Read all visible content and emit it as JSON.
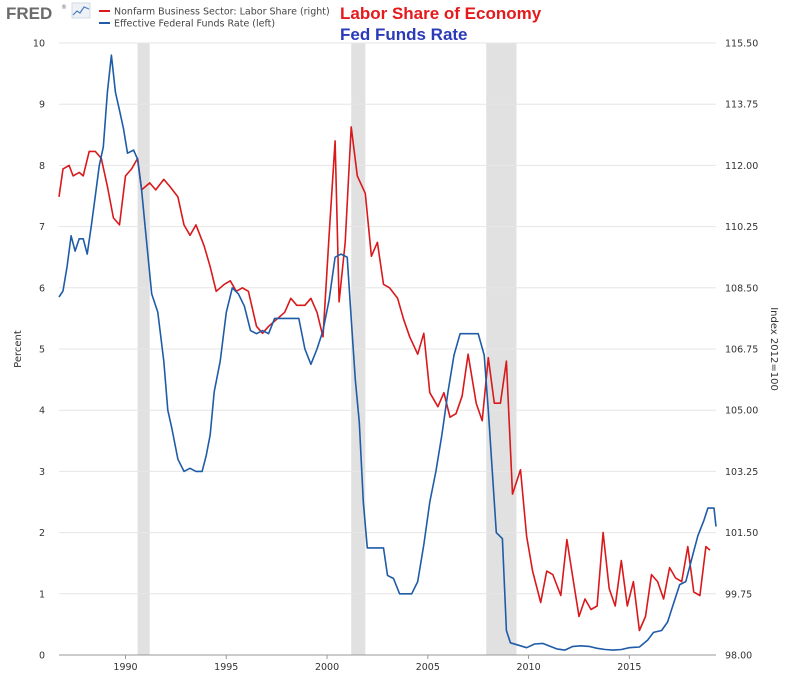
{
  "logo": {
    "text": "FRED",
    "trademark": "®"
  },
  "overlay": {
    "labor_title": "Labor Share of Economy",
    "fed_title": "Fed Funds Rate",
    "labor_color": "#e41a1c",
    "fed_color": "#2b3bb8"
  },
  "chart_data": {
    "type": "line",
    "x_range": [
      1986.7,
      2019.3
    ],
    "x_ticks": [
      {
        "value": 1990,
        "label": "1990"
      },
      {
        "value": 1995,
        "label": "1995"
      },
      {
        "value": 2000,
        "label": "2000"
      },
      {
        "value": 2005,
        "label": "2005"
      },
      {
        "value": 2010,
        "label": "2010"
      },
      {
        "value": 2015,
        "label": "2015"
      }
    ],
    "y_left": {
      "label": "Percent",
      "range": [
        0,
        10
      ],
      "ticks": [
        "0",
        "1",
        "2",
        "3",
        "4",
        "5",
        "6",
        "7",
        "8",
        "9",
        "10"
      ]
    },
    "y_right": {
      "label": "Index 2012=100",
      "range": [
        98.0,
        115.5
      ],
      "ticks": [
        "98.00",
        "99.75",
        "101.50",
        "103.25",
        "105.00",
        "106.75",
        "108.50",
        "110.25",
        "112.00",
        "113.75",
        "115.50"
      ]
    },
    "grid": true,
    "recessions": [
      [
        1990.6,
        1991.2
      ],
      [
        2001.2,
        2001.9
      ],
      [
        2007.9,
        2009.4
      ]
    ],
    "series": [
      {
        "name": "Nonfarm Business Sector: Labor Share (right)",
        "axis": "right",
        "color": "#d9191c",
        "points": [
          [
            1986.7,
            111.1
          ],
          [
            1986.9,
            111.9
          ],
          [
            1987.2,
            112.0
          ],
          [
            1987.4,
            111.7
          ],
          [
            1987.7,
            111.8
          ],
          [
            1987.9,
            111.7
          ],
          [
            1988.2,
            112.4
          ],
          [
            1988.5,
            112.4
          ],
          [
            1988.8,
            112.2
          ],
          [
            1989.1,
            111.4
          ],
          [
            1989.4,
            110.5
          ],
          [
            1989.7,
            110.3
          ],
          [
            1990.0,
            111.7
          ],
          [
            1990.3,
            111.9
          ],
          [
            1990.6,
            112.2
          ],
          [
            1990.8,
            111.3
          ],
          [
            1991.2,
            111.5
          ],
          [
            1991.5,
            111.3
          ],
          [
            1991.9,
            111.6
          ],
          [
            1992.2,
            111.4
          ],
          [
            1992.6,
            111.1
          ],
          [
            1992.9,
            110.3
          ],
          [
            1993.2,
            110.0
          ],
          [
            1993.5,
            110.3
          ],
          [
            1993.9,
            109.7
          ],
          [
            1994.2,
            109.1
          ],
          [
            1994.5,
            108.4
          ],
          [
            1994.9,
            108.6
          ],
          [
            1995.2,
            108.7
          ],
          [
            1995.5,
            108.4
          ],
          [
            1995.8,
            108.5
          ],
          [
            1996.1,
            108.4
          ],
          [
            1996.5,
            107.4
          ],
          [
            1996.8,
            107.2
          ],
          [
            1997.1,
            107.4
          ],
          [
            1997.5,
            107.6
          ],
          [
            1997.9,
            107.8
          ],
          [
            1998.2,
            108.2
          ],
          [
            1998.5,
            108.0
          ],
          [
            1998.9,
            108.0
          ],
          [
            1999.2,
            108.2
          ],
          [
            1999.5,
            107.8
          ],
          [
            1999.8,
            107.1
          ],
          [
            2000.1,
            110.0
          ],
          [
            2000.4,
            112.7
          ],
          [
            2000.6,
            108.1
          ],
          [
            2000.9,
            109.8
          ],
          [
            2001.2,
            113.1
          ],
          [
            2001.5,
            111.7
          ],
          [
            2001.9,
            111.2
          ],
          [
            2002.2,
            109.4
          ],
          [
            2002.5,
            109.8
          ],
          [
            2002.8,
            108.6
          ],
          [
            2003.1,
            108.5
          ],
          [
            2003.5,
            108.2
          ],
          [
            2003.8,
            107.6
          ],
          [
            2004.1,
            107.1
          ],
          [
            2004.5,
            106.6
          ],
          [
            2004.8,
            107.2
          ],
          [
            2005.1,
            105.5
          ],
          [
            2005.5,
            105.1
          ],
          [
            2005.8,
            105.5
          ],
          [
            2006.1,
            104.8
          ],
          [
            2006.4,
            104.9
          ],
          [
            2006.7,
            105.4
          ],
          [
            2007.0,
            106.6
          ],
          [
            2007.4,
            105.2
          ],
          [
            2007.7,
            104.7
          ],
          [
            2008.0,
            106.5
          ],
          [
            2008.3,
            105.2
          ],
          [
            2008.6,
            105.2
          ],
          [
            2008.9,
            106.4
          ],
          [
            2009.2,
            102.6
          ],
          [
            2009.6,
            103.3
          ],
          [
            2009.9,
            101.4
          ],
          [
            2010.2,
            100.4
          ],
          [
            2010.6,
            99.5
          ],
          [
            2010.9,
            100.4
          ],
          [
            2011.2,
            100.3
          ],
          [
            2011.6,
            99.7
          ],
          [
            2011.9,
            101.3
          ],
          [
            2012.2,
            100.2
          ],
          [
            2012.5,
            99.1
          ],
          [
            2012.8,
            99.6
          ],
          [
            2013.1,
            99.3
          ],
          [
            2013.4,
            99.4
          ],
          [
            2013.7,
            101.5
          ],
          [
            2014.0,
            99.9
          ],
          [
            2014.3,
            99.4
          ],
          [
            2014.6,
            100.7
          ],
          [
            2014.9,
            99.4
          ],
          [
            2015.2,
            100.1
          ],
          [
            2015.5,
            98.7
          ],
          [
            2015.8,
            99.1
          ],
          [
            2016.1,
            100.3
          ],
          [
            2016.4,
            100.1
          ],
          [
            2016.7,
            99.6
          ],
          [
            2017.0,
            100.5
          ],
          [
            2017.3,
            100.2
          ],
          [
            2017.6,
            100.1
          ],
          [
            2017.9,
            101.1
          ],
          [
            2018.2,
            99.8
          ],
          [
            2018.5,
            99.7
          ],
          [
            2018.8,
            101.1
          ],
          [
            2019.0,
            101.0
          ]
        ]
      },
      {
        "name": "Effective Federal Funds Rate (left)",
        "axis": "left",
        "color": "#1f5ca8",
        "points": [
          [
            1986.7,
            5.85
          ],
          [
            1986.9,
            5.95
          ],
          [
            1987.1,
            6.35
          ],
          [
            1987.3,
            6.85
          ],
          [
            1987.5,
            6.6
          ],
          [
            1987.7,
            6.8
          ],
          [
            1987.9,
            6.8
          ],
          [
            1988.1,
            6.55
          ],
          [
            1988.3,
            7.0
          ],
          [
            1988.5,
            7.5
          ],
          [
            1988.7,
            8.0
          ],
          [
            1988.9,
            8.3
          ],
          [
            1989.1,
            9.2
          ],
          [
            1989.3,
            9.8
          ],
          [
            1989.5,
            9.2
          ],
          [
            1989.7,
            8.9
          ],
          [
            1989.9,
            8.6
          ],
          [
            1990.1,
            8.2
          ],
          [
            1990.4,
            8.25
          ],
          [
            1990.6,
            8.1
          ],
          [
            1990.8,
            7.6
          ],
          [
            1991.0,
            6.9
          ],
          [
            1991.3,
            5.9
          ],
          [
            1991.6,
            5.6
          ],
          [
            1991.9,
            4.8
          ],
          [
            1992.1,
            4.0
          ],
          [
            1992.3,
            3.7
          ],
          [
            1992.6,
            3.2
          ],
          [
            1992.9,
            3.0
          ],
          [
            1993.2,
            3.05
          ],
          [
            1993.5,
            3.0
          ],
          [
            1993.8,
            3.0
          ],
          [
            1994.0,
            3.25
          ],
          [
            1994.2,
            3.6
          ],
          [
            1994.4,
            4.3
          ],
          [
            1994.7,
            4.8
          ],
          [
            1995.0,
            5.6
          ],
          [
            1995.3,
            6.0
          ],
          [
            1995.6,
            5.9
          ],
          [
            1995.9,
            5.7
          ],
          [
            1996.2,
            5.3
          ],
          [
            1996.5,
            5.25
          ],
          [
            1996.8,
            5.3
          ],
          [
            1997.1,
            5.25
          ],
          [
            1997.4,
            5.5
          ],
          [
            1997.7,
            5.5
          ],
          [
            1998.0,
            5.5
          ],
          [
            1998.3,
            5.5
          ],
          [
            1998.6,
            5.5
          ],
          [
            1998.9,
            5.0
          ],
          [
            1999.2,
            4.75
          ],
          [
            1999.5,
            5.0
          ],
          [
            1999.8,
            5.3
          ],
          [
            2000.1,
            5.8
          ],
          [
            2000.4,
            6.5
          ],
          [
            2000.7,
            6.55
          ],
          [
            2001.0,
            6.5
          ],
          [
            2001.2,
            5.5
          ],
          [
            2001.4,
            4.5
          ],
          [
            2001.6,
            3.8
          ],
          [
            2001.8,
            2.5
          ],
          [
            2002.0,
            1.75
          ],
          [
            2002.4,
            1.75
          ],
          [
            2002.8,
            1.75
          ],
          [
            2003.0,
            1.3
          ],
          [
            2003.3,
            1.25
          ],
          [
            2003.6,
            1.0
          ],
          [
            2003.9,
            1.0
          ],
          [
            2004.2,
            1.0
          ],
          [
            2004.5,
            1.2
          ],
          [
            2004.8,
            1.8
          ],
          [
            2005.1,
            2.5
          ],
          [
            2005.4,
            3.0
          ],
          [
            2005.7,
            3.6
          ],
          [
            2006.0,
            4.3
          ],
          [
            2006.3,
            4.9
          ],
          [
            2006.6,
            5.25
          ],
          [
            2006.9,
            5.25
          ],
          [
            2007.2,
            5.25
          ],
          [
            2007.5,
            5.25
          ],
          [
            2007.8,
            4.9
          ],
          [
            2008.0,
            4.0
          ],
          [
            2008.2,
            3.0
          ],
          [
            2008.4,
            2.0
          ],
          [
            2008.7,
            1.9
          ],
          [
            2008.9,
            0.4
          ],
          [
            2009.1,
            0.2
          ],
          [
            2009.5,
            0.16
          ],
          [
            2009.9,
            0.12
          ],
          [
            2010.3,
            0.18
          ],
          [
            2010.7,
            0.19
          ],
          [
            2011.0,
            0.15
          ],
          [
            2011.4,
            0.1
          ],
          [
            2011.8,
            0.08
          ],
          [
            2012.2,
            0.14
          ],
          [
            2012.6,
            0.15
          ],
          [
            2013.0,
            0.14
          ],
          [
            2013.4,
            0.11
          ],
          [
            2013.8,
            0.09
          ],
          [
            2014.2,
            0.08
          ],
          [
            2014.6,
            0.09
          ],
          [
            2015.0,
            0.12
          ],
          [
            2015.5,
            0.13
          ],
          [
            2015.9,
            0.24
          ],
          [
            2016.2,
            0.37
          ],
          [
            2016.6,
            0.4
          ],
          [
            2016.9,
            0.54
          ],
          [
            2017.2,
            0.85
          ],
          [
            2017.5,
            1.15
          ],
          [
            2017.8,
            1.2
          ],
          [
            2018.0,
            1.45
          ],
          [
            2018.2,
            1.7
          ],
          [
            2018.4,
            1.95
          ],
          [
            2018.7,
            2.2
          ],
          [
            2018.9,
            2.4
          ],
          [
            2019.0,
            2.4
          ],
          [
            2019.2,
            2.4
          ],
          [
            2019.3,
            2.1
          ]
        ]
      }
    ]
  }
}
